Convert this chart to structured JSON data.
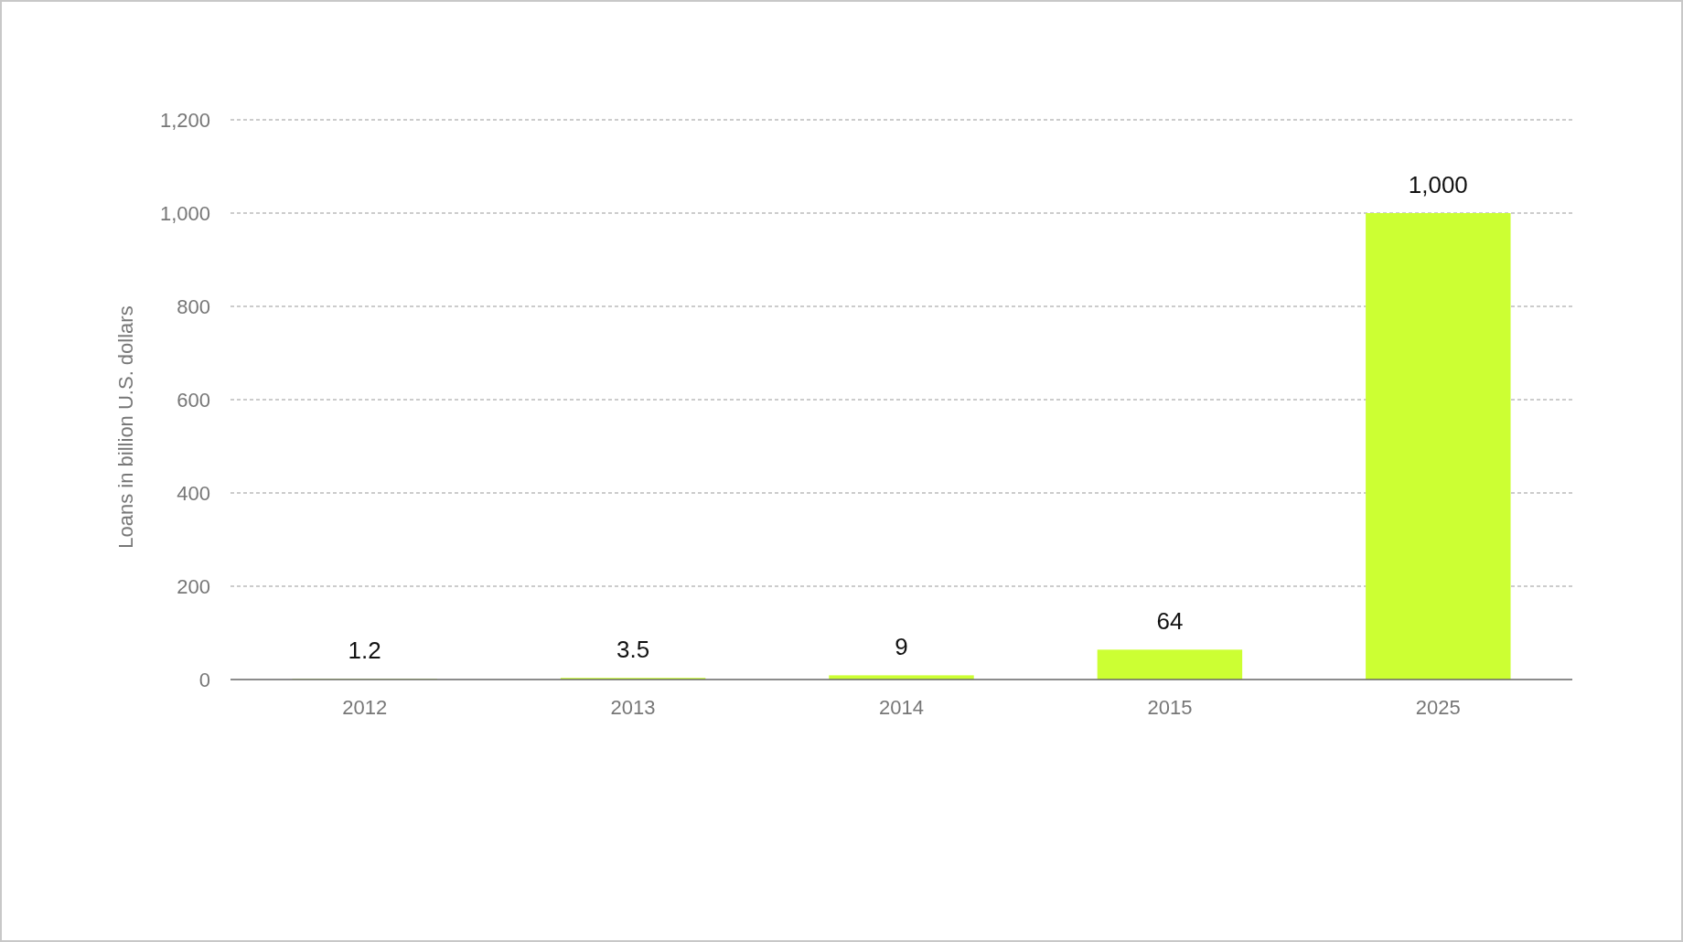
{
  "chart_data": {
    "type": "bar",
    "ylabel": "Loans in billion U.S. dollars",
    "categories": [
      "2012",
      "2013",
      "2014",
      "2015",
      "2025"
    ],
    "values": [
      1.2,
      3.5,
      9,
      64,
      1000
    ],
    "color": "#ccff33",
    "ylim": [
      0,
      1200
    ],
    "yticks": [
      {
        "value": 0,
        "label": "0"
      },
      {
        "value": 200,
        "label": "200"
      },
      {
        "value": 400,
        "label": "400"
      },
      {
        "value": 600,
        "label": "600"
      },
      {
        "value": 800,
        "label": "800"
      },
      {
        "value": 1000,
        "label": "1,000"
      },
      {
        "value": 1200,
        "label": "1,200"
      }
    ],
    "grid": "y",
    "data_labels": true,
    "value_labels": [
      "1.2",
      "3.5",
      "9",
      "64",
      "1,000"
    ]
  }
}
